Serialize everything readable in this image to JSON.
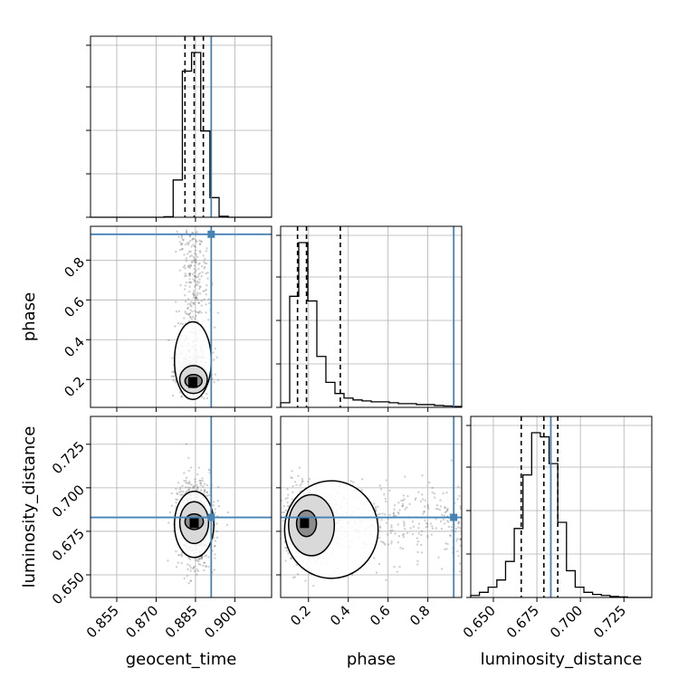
{
  "colors": {
    "truth": "#4682b4",
    "line": "#000000",
    "grid": "#b0b0b0",
    "points": "#555555"
  },
  "chart_data": {
    "type": "corner",
    "parameters": [
      "geocent_time",
      "phase",
      "luminosity_distance"
    ],
    "truths": {
      "geocent_time": 0.891,
      "phase": 0.93,
      "luminosity_distance": 0.683
    },
    "quantiles": {
      "geocent_time": [
        0.881,
        0.8845,
        0.888
      ],
      "phase": [
        0.145,
        0.19,
        0.36
      ],
      "luminosity_distance": [
        0.666,
        0.679,
        0.687
      ]
    },
    "axes": {
      "geocent_time": {
        "label": "geocent_time",
        "range": [
          0.845,
          0.914
        ],
        "ticks": [
          0.855,
          0.87,
          0.885,
          0.9
        ],
        "tick_labels": [
          "0.855",
          "0.870",
          "0.885",
          "0.900"
        ]
      },
      "phase": {
        "label": "phase",
        "range": [
          0.06,
          0.97
        ],
        "ticks": [
          0.2,
          0.4,
          0.6,
          0.8
        ],
        "tick_labels": [
          "0.2",
          "0.4",
          "0.6",
          "0.8"
        ]
      },
      "luminosity_distance": {
        "label": "luminosity_distance",
        "range": [
          0.637,
          0.741
        ],
        "ticks": [
          0.65,
          0.675,
          0.7,
          0.725
        ],
        "tick_labels": [
          "0.650",
          "0.675",
          "0.700",
          "0.725"
        ]
      }
    },
    "histograms": {
      "geocent_time": {
        "edges": [
          0.845,
          0.8485,
          0.852,
          0.8555,
          0.859,
          0.8625,
          0.866,
          0.8695,
          0.873,
          0.8765,
          0.88,
          0.8835,
          0.887,
          0.8905,
          0.894,
          0.8975,
          0.901,
          0.9045,
          0.908,
          0.9115
        ],
        "counts": [
          0,
          0,
          0,
          0,
          0,
          0,
          0,
          0,
          0.5,
          38,
          149,
          168,
          88,
          20,
          1,
          0,
          0,
          0,
          0
        ]
      },
      "phase": {
        "edges": [
          0.06,
          0.1055,
          0.151,
          0.1965,
          0.242,
          0.2875,
          0.333,
          0.3785,
          0.424,
          0.4695,
          0.515,
          0.5605,
          0.606,
          0.6515,
          0.697,
          0.7425,
          0.788,
          0.8335,
          0.879,
          0.9245,
          0.97
        ],
        "counts": [
          5,
          120,
          178,
          115,
          55,
          27,
          15,
          10,
          8,
          7,
          6,
          6,
          5,
          4,
          4,
          3,
          3,
          2,
          1.5,
          1
        ]
      },
      "luminosity_distance": {
        "edges": [
          0.637,
          0.642,
          0.647,
          0.652,
          0.657,
          0.662,
          0.667,
          0.672,
          0.677,
          0.682,
          0.687,
          0.692,
          0.697,
          0.702,
          0.707,
          0.712,
          0.717,
          0.722,
          0.727,
          0.732
        ],
        "counts": [
          2,
          5,
          10,
          17,
          35,
          67,
          119,
          160,
          156,
          130,
          73,
          26,
          10,
          5,
          3,
          2,
          1,
          0.5,
          0
        ]
      }
    },
    "pairs": [
      {
        "x": "geocent_time",
        "y": "phase",
        "mode": [
          0.884,
          0.185
        ],
        "contour_levels_x": [
          [
            0.881,
            0.8875
          ],
          [
            0.879,
            0.8895
          ],
          [
            0.877,
            0.891
          ]
        ],
        "contour_levels_y": [
          [
            0.16,
            0.225
          ],
          [
            0.13,
            0.27
          ],
          [
            0.1,
            0.49
          ]
        ]
      },
      {
        "x": "geocent_time",
        "y": "luminosity_distance",
        "mode": [
          0.8845,
          0.68
        ],
        "contour_levels_x": [
          [
            0.881,
            0.888
          ],
          [
            0.879,
            0.89
          ],
          [
            0.877,
            0.892
          ]
        ],
        "contour_levels_y": [
          [
            0.676,
            0.685
          ],
          [
            0.668,
            0.692
          ],
          [
            0.66,
            0.698
          ]
        ]
      },
      {
        "x": "phase",
        "y": "luminosity_distance",
        "mode": [
          0.18,
          0.68
        ],
        "contour_levels_x": [
          [
            0.14,
            0.24
          ],
          [
            0.1,
            0.33
          ],
          [
            0.08,
            0.55
          ]
        ],
        "contour_levels_y": [
          [
            0.672,
            0.687
          ],
          [
            0.661,
            0.696
          ],
          [
            0.648,
            0.704
          ]
        ]
      }
    ]
  }
}
